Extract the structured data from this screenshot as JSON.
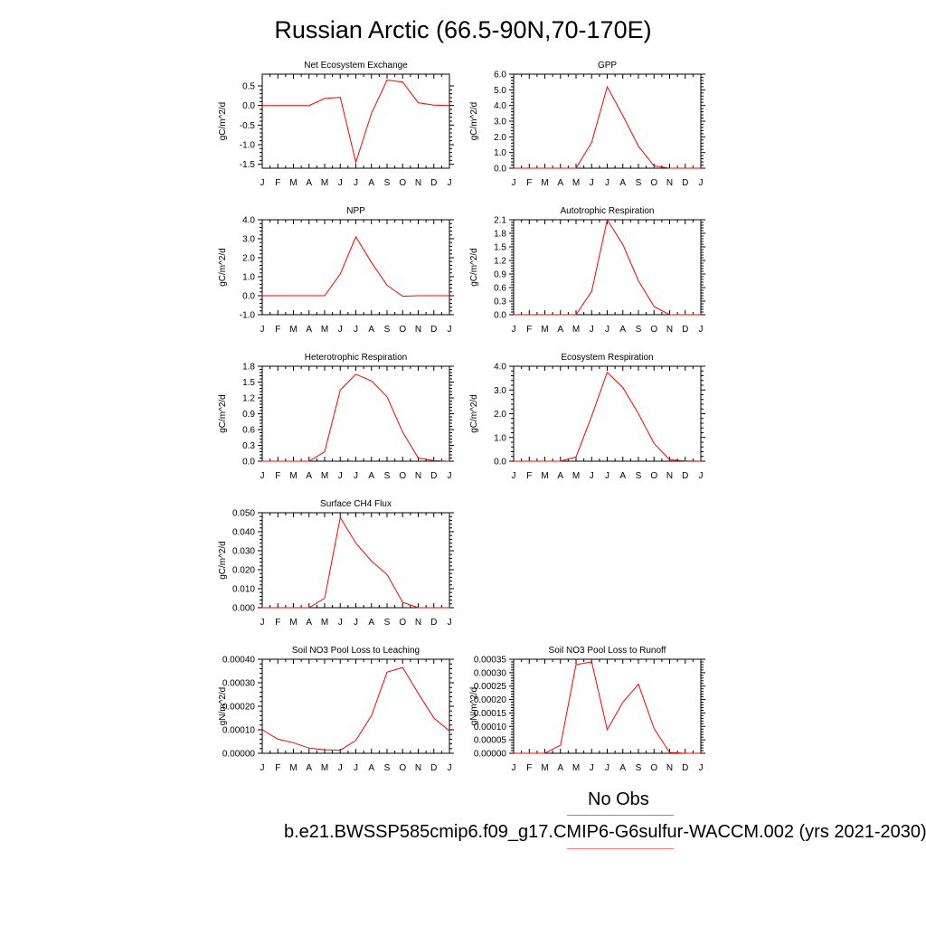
{
  "title": "Russian Arctic (66.5-90N,70-170E)",
  "legend": {
    "obs_label": "No Obs",
    "obs_color": "#7f7fff",
    "model_label": "b.e21.BWSSP585cmip6.f09_g17.CMIP6-G6sulfur-WACCM.002 (yrs 2021-2030)",
    "model_color": "#ff7f7f"
  },
  "series_color": "#ff0000",
  "chart_data": [
    {
      "type": "line",
      "title": "Net Ecosystem Exchange",
      "ylabel": "gC/m^2/d",
      "x": [
        "J",
        "F",
        "M",
        "A",
        "M",
        "J",
        "J",
        "A",
        "S",
        "O",
        "N",
        "D",
        "J"
      ],
      "values": [
        0.0,
        0.0,
        0.0,
        0.0,
        0.18,
        0.21,
        -1.45,
        -0.2,
        0.65,
        0.6,
        0.07,
        0.01,
        0.0
      ],
      "ylim": [
        -1.6,
        0.8
      ],
      "yticks": [
        -1.5,
        -1.0,
        -0.5,
        0.0,
        0.5
      ],
      "yticklabels": [
        "-1.5",
        "-1.0",
        "-0.5",
        "0.0",
        "0.5"
      ]
    },
    {
      "type": "line",
      "title": "GPP",
      "ylabel": "gC/m^2/d",
      "x": [
        "J",
        "F",
        "M",
        "A",
        "M",
        "J",
        "J",
        "A",
        "S",
        "O",
        "N",
        "D",
        "J"
      ],
      "values": [
        0.0,
        0.0,
        0.0,
        0.0,
        0.0,
        1.65,
        5.2,
        3.35,
        1.4,
        0.15,
        0.0,
        0.0,
        0.0
      ],
      "ylim": [
        0.0,
        6.0
      ],
      "yticks": [
        0.0,
        1.0,
        2.0,
        3.0,
        4.0,
        5.0,
        6.0
      ],
      "yticklabels": [
        "0.0",
        "1.0",
        "2.0",
        "3.0",
        "4.0",
        "5.0",
        "6.0"
      ]
    },
    {
      "type": "line",
      "title": "NPP",
      "ylabel": "gC/m^2/d",
      "x": [
        "J",
        "F",
        "M",
        "A",
        "M",
        "J",
        "J",
        "A",
        "S",
        "O",
        "N",
        "D",
        "J"
      ],
      "values": [
        0.0,
        0.0,
        0.0,
        0.0,
        0.0,
        1.15,
        3.1,
        1.75,
        0.55,
        -0.03,
        0.0,
        0.0,
        0.0
      ],
      "ylim": [
        -1.0,
        4.0
      ],
      "yticks": [
        -1.0,
        0.0,
        1.0,
        2.0,
        3.0,
        4.0
      ],
      "yticklabels": [
        "-1.0",
        "0.0",
        "1.0",
        "2.0",
        "3.0",
        "4.0"
      ]
    },
    {
      "type": "line",
      "title": "Autotrophic Respiration",
      "ylabel": "gC/m^2/d",
      "x": [
        "J",
        "F",
        "M",
        "A",
        "M",
        "J",
        "J",
        "A",
        "S",
        "O",
        "N",
        "D",
        "J"
      ],
      "values": [
        0.0,
        0.0,
        0.0,
        0.0,
        0.0,
        0.52,
        2.1,
        1.55,
        0.75,
        0.18,
        0.0,
        0.0,
        0.0
      ],
      "ylim": [
        0.0,
        2.1
      ],
      "yticks": [
        0.0,
        0.3,
        0.6,
        0.9,
        1.2,
        1.5,
        1.8,
        2.1
      ],
      "yticklabels": [
        "0.0",
        "0.3",
        "0.6",
        "0.9",
        "1.2",
        "1.5",
        "1.8",
        "2.1"
      ]
    },
    {
      "type": "line",
      "title": "Heterotrophic Respiration",
      "ylabel": "gC/m^2/d",
      "x": [
        "J",
        "F",
        "M",
        "A",
        "M",
        "J",
        "J",
        "A",
        "S",
        "O",
        "N",
        "D",
        "J"
      ],
      "values": [
        0.0,
        0.0,
        0.0,
        0.0,
        0.18,
        1.35,
        1.65,
        1.52,
        1.22,
        0.55,
        0.06,
        0.01,
        0.0
      ],
      "ylim": [
        0.0,
        1.8
      ],
      "yticks": [
        0.0,
        0.3,
        0.6,
        0.9,
        1.2,
        1.5,
        1.8
      ],
      "yticklabels": [
        "0.0",
        "0.3",
        "0.6",
        "0.9",
        "1.2",
        "1.5",
        "1.8"
      ]
    },
    {
      "type": "line",
      "title": "Ecosystem Respiration",
      "ylabel": "gC/m^2/d",
      "x": [
        "J",
        "F",
        "M",
        "A",
        "M",
        "J",
        "J",
        "A",
        "S",
        "O",
        "N",
        "D",
        "J"
      ],
      "values": [
        0.0,
        0.0,
        0.0,
        0.0,
        0.18,
        1.9,
        3.75,
        3.1,
        2.0,
        0.75,
        0.06,
        0.01,
        0.0
      ],
      "ylim": [
        0.0,
        4.0
      ],
      "yticks": [
        0.0,
        1.0,
        2.0,
        3.0,
        4.0
      ],
      "yticklabels": [
        "0.0",
        "1.0",
        "2.0",
        "3.0",
        "4.0"
      ]
    },
    {
      "type": "line",
      "title": "Surface CH4 Flux",
      "ylabel": "gC/m^2/d",
      "x": [
        "J",
        "F",
        "M",
        "A",
        "M",
        "J",
        "J",
        "A",
        "S",
        "O",
        "N",
        "D",
        "J"
      ],
      "values": [
        0.0,
        0.0,
        0.0,
        0.0,
        0.005,
        0.0475,
        0.034,
        0.0245,
        0.0175,
        0.0028,
        0.0,
        0.0,
        0.0
      ],
      "ylim": [
        0.0,
        0.05
      ],
      "yticks": [
        0.0,
        0.01,
        0.02,
        0.03,
        0.04,
        0.05
      ],
      "yticklabels": [
        "0.000",
        "0.010",
        "0.020",
        "0.030",
        "0.040",
        "0.050"
      ]
    },
    {
      "type": "line",
      "title": "Soil NO3 Pool Loss to Leaching",
      "ylabel": "gN/m^2/d",
      "x": [
        "J",
        "F",
        "M",
        "A",
        "M",
        "J",
        "J",
        "A",
        "S",
        "O",
        "N",
        "D",
        "J"
      ],
      "values": [
        0.0001,
        6e-05,
        4.5e-05,
        2.2e-05,
        1.5e-05,
        1.3e-05,
        5.5e-05,
        0.00016,
        0.000345,
        0.000365,
        0.000255,
        0.00015,
        9.5e-05
      ],
      "ylim": [
        0.0,
        0.0004
      ],
      "yticks": [
        0.0,
        0.0001,
        0.0002,
        0.0003,
        0.0004
      ],
      "yticklabels": [
        "0.00000",
        "0.00010",
        "0.00020",
        "0.00030",
        "0.00040"
      ]
    },
    {
      "type": "line",
      "title": "Soil NO3 Pool Loss to Runoff",
      "ylabel": "gN/m^2/d",
      "x": [
        "J",
        "F",
        "M",
        "A",
        "M",
        "J",
        "J",
        "A",
        "S",
        "O",
        "N",
        "D",
        "J"
      ],
      "values": [
        0.0,
        0.0,
        0.0,
        3e-05,
        0.00033,
        0.00034,
        8.8e-05,
        0.00019,
        0.000257,
        9.2e-05,
        3e-06,
        0.0,
        0.0
      ],
      "ylim": [
        0.0,
        0.00035
      ],
      "yticks": [
        0.0,
        5e-05,
        0.0001,
        0.00015,
        0.0002,
        0.00025,
        0.0003,
        0.00035
      ],
      "yticklabels": [
        "0.00000",
        "0.00005",
        "0.00010",
        "0.00015",
        "0.00020",
        "0.00025",
        "0.00030",
        "0.00035"
      ]
    }
  ]
}
